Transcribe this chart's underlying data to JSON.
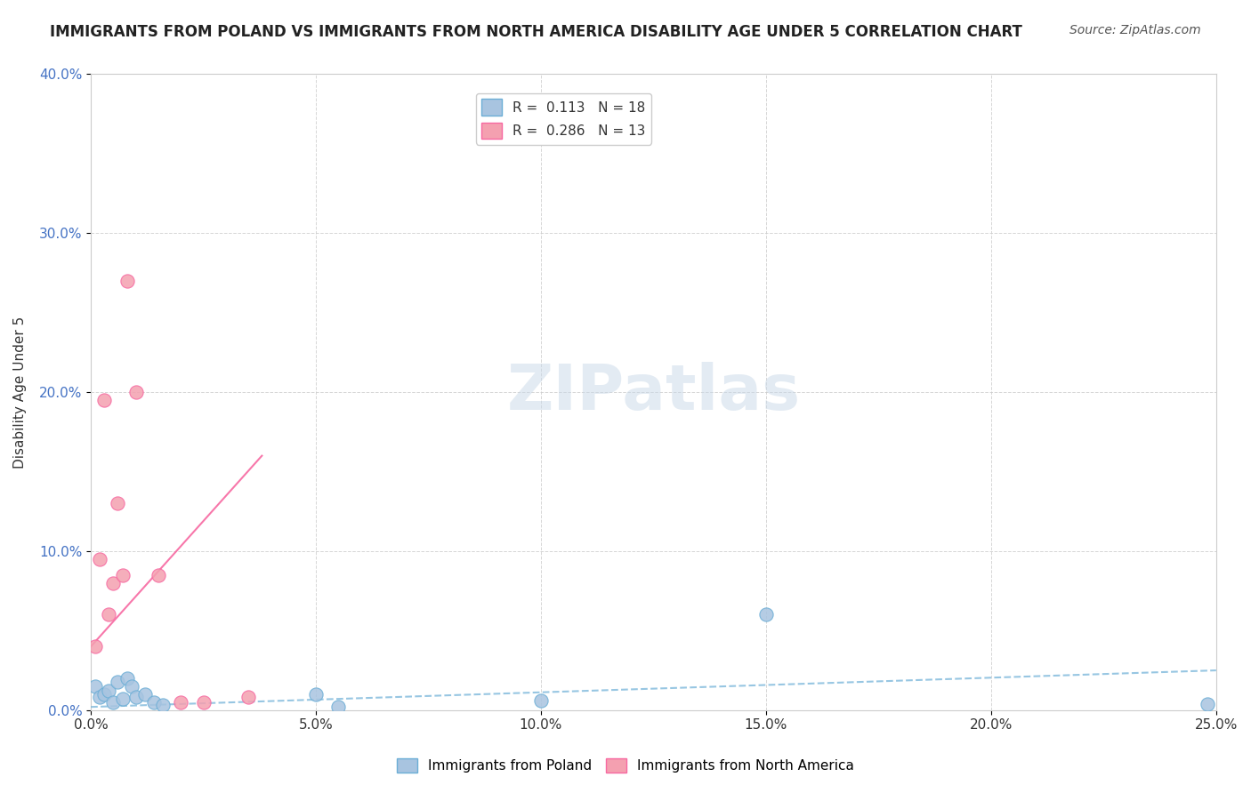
{
  "title": "IMMIGRANTS FROM POLAND VS IMMIGRANTS FROM NORTH AMERICA DISABILITY AGE UNDER 5 CORRELATION CHART",
  "source": "Source: ZipAtlas.com",
  "xlabel": "",
  "ylabel": "Disability Age Under 5",
  "xlim": [
    0.0,
    0.25
  ],
  "ylim": [
    0.0,
    0.4
  ],
  "xticks": [
    0.0,
    0.05,
    0.1,
    0.15,
    0.2,
    0.25
  ],
  "yticks": [
    0.0,
    0.1,
    0.2,
    0.3,
    0.4
  ],
  "xtick_labels": [
    "0.0%",
    "5.0%",
    "10.0%",
    "15.0%",
    "20.0%",
    "25.0%"
  ],
  "ytick_labels": [
    "0.0%",
    "10.0%",
    "20.0%",
    "30.0%",
    "40.0%"
  ],
  "poland_R": 0.113,
  "poland_N": 18,
  "na_R": 0.286,
  "na_N": 13,
  "poland_color": "#a8c4e0",
  "na_color": "#f4a0b0",
  "poland_line_color": "#6baed6",
  "na_line_color": "#f768a1",
  "watermark": "ZIPatlas",
  "watermark_color": "#c8d8e8",
  "legend_box_color": "#ffffff",
  "poland_scatter_x": [
    0.001,
    0.002,
    0.003,
    0.004,
    0.005,
    0.006,
    0.007,
    0.008,
    0.009,
    0.01,
    0.012,
    0.014,
    0.016,
    0.05,
    0.055,
    0.1,
    0.15,
    0.248
  ],
  "poland_scatter_y": [
    0.015,
    0.008,
    0.01,
    0.012,
    0.005,
    0.018,
    0.007,
    0.02,
    0.015,
    0.008,
    0.01,
    0.005,
    0.003,
    0.01,
    0.002,
    0.006,
    0.06,
    0.004
  ],
  "na_scatter_x": [
    0.001,
    0.002,
    0.003,
    0.004,
    0.005,
    0.006,
    0.007,
    0.008,
    0.01,
    0.015,
    0.02,
    0.025,
    0.035
  ],
  "na_scatter_y": [
    0.04,
    0.095,
    0.195,
    0.06,
    0.08,
    0.13,
    0.085,
    0.27,
    0.2,
    0.085,
    0.005,
    0.005,
    0.008
  ]
}
